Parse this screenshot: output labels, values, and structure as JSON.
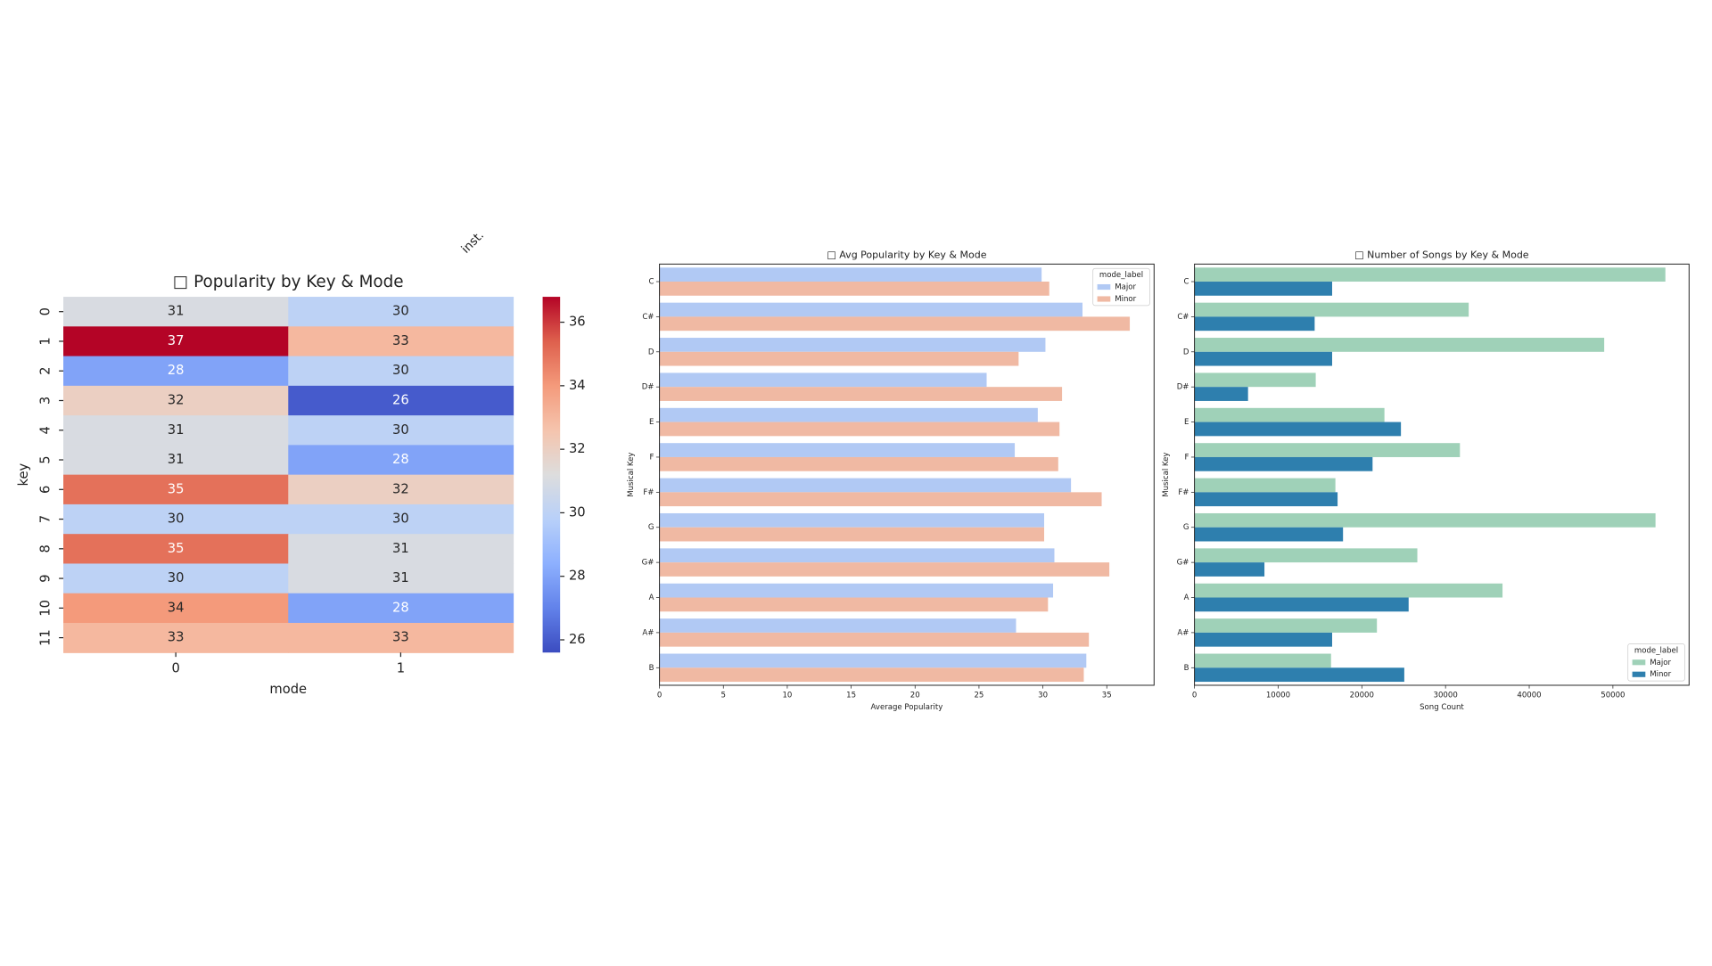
{
  "overlay_text": "inst.",
  "chart_data": [
    {
      "type": "heatmap",
      "title": "□ Popularity by Key & Mode",
      "xlabel": "mode",
      "ylabel": "key",
      "x": [
        0,
        1
      ],
      "y": [
        0,
        1,
        2,
        3,
        4,
        5,
        6,
        7,
        8,
        9,
        10,
        11
      ],
      "values": [
        [
          31,
          30
        ],
        [
          37,
          33
        ],
        [
          28,
          30
        ],
        [
          32,
          26
        ],
        [
          31,
          30
        ],
        [
          31,
          28
        ],
        [
          35,
          32
        ],
        [
          30,
          30
        ],
        [
          35,
          31
        ],
        [
          30,
          31
        ],
        [
          34,
          28
        ],
        [
          33,
          33
        ]
      ],
      "cmap": "coolwarm",
      "cmap_colors": [
        "#3b4cc0",
        "#6282ea",
        "#8db0fe",
        "#b8d0f9",
        "#dddddd",
        "#f5c4ad",
        "#f49a7b",
        "#de604d",
        "#b40426"
      ],
      "clim": [
        25.6,
        36.8
      ],
      "cticks": [
        26,
        28,
        30,
        32,
        34,
        36
      ]
    },
    {
      "type": "barh",
      "title": "□ Avg Popularity by Key & Mode",
      "xlabel": "Average Popularity",
      "ylabel": "Musical Key",
      "categories": [
        "C",
        "C#",
        "D",
        "D#",
        "E",
        "F",
        "F#",
        "G",
        "G#",
        "A",
        "A#",
        "B"
      ],
      "series": [
        {
          "name": "Major",
          "color": "#b1c9f4",
          "values": [
            29.9,
            33.1,
            30.2,
            25.6,
            29.6,
            27.8,
            32.2,
            30.1,
            30.9,
            30.8,
            27.9,
            33.4
          ]
        },
        {
          "name": "Minor",
          "color": "#f0b9a3",
          "values": [
            30.5,
            36.8,
            28.1,
            31.5,
            31.3,
            31.2,
            34.6,
            30.1,
            35.2,
            30.4,
            33.6,
            33.2
          ]
        }
      ],
      "xlim": [
        0,
        38.7
      ],
      "xticks": [
        0,
        5,
        10,
        15,
        20,
        25,
        30,
        35
      ],
      "legend_title": "mode_label",
      "legend": "upper right"
    },
    {
      "type": "barh",
      "title": "□ Number of Songs by Key & Mode",
      "xlabel": "Song Count",
      "ylabel": "Musical Key",
      "categories": [
        "C",
        "C#",
        "D",
        "D#",
        "E",
        "F",
        "F#",
        "G",
        "G#",
        "A",
        "A#",
        "B"
      ],
      "series": [
        {
          "name": "Major",
          "color": "#9fd1b8",
          "values": [
            56270,
            32770,
            48960,
            14490,
            22700,
            31720,
            16840,
            55090,
            26630,
            36810,
            21800,
            16320
          ]
        },
        {
          "name": "Minor",
          "color": "#2e7fae",
          "values": [
            16450,
            14360,
            16450,
            6400,
            24670,
            21280,
            17100,
            17750,
            8360,
            25590,
            16450,
            25070
          ]
        }
      ],
      "xlim": [
        0,
        59100
      ],
      "xticks": [
        0,
        10000,
        20000,
        30000,
        40000,
        50000
      ],
      "legend_title": "mode_label",
      "legend": "lower right"
    }
  ]
}
